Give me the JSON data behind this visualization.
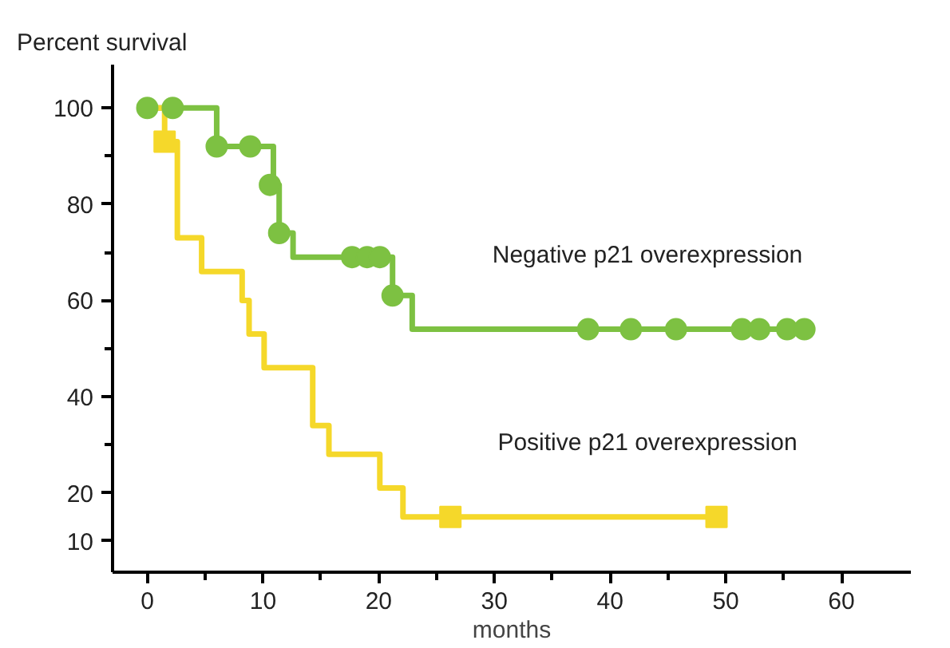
{
  "chart_data": {
    "type": "step",
    "ylabel": "Percent survival",
    "xlabel": "months",
    "xlim": [
      -3,
      66
    ],
    "ylim": [
      3.5,
      109
    ],
    "xticks": [
      0,
      10,
      20,
      30,
      40,
      50,
      60
    ],
    "yticks": [
      100,
      80,
      60,
      40,
      20,
      10
    ],
    "grid": false,
    "line_style": "solid",
    "series": [
      {
        "name": "Negative p21 overexpression",
        "color": "#7dc142",
        "x": [
          0,
          6,
          10.9,
          11.4,
          12.6,
          21.2,
          22.9,
          57
        ],
        "values": [
          100,
          92,
          84,
          74,
          69,
          61,
          54,
          54
        ]
      },
      {
        "name": "Positive p21 overexpression",
        "color": "#f5d82a",
        "x": [
          0,
          1.5,
          2.6,
          4.7,
          8.2,
          8.8,
          10.1,
          14.3,
          15.7,
          20.1,
          22.1,
          49.2
        ],
        "values": [
          100,
          93,
          73,
          66,
          60,
          53,
          46,
          34,
          28,
          21,
          15,
          15
        ]
      },
      {
        "type": "scatter",
        "marker": "circle",
        "color": "#7dc142",
        "x": [
          0,
          2.2,
          6,
          8.9,
          10.6,
          11.4,
          17.7,
          19,
          20.1,
          21.2,
          38.1,
          41.8,
          45.7,
          51.4,
          52.9,
          55.3,
          56.8
        ],
        "values": [
          100,
          100,
          92,
          92,
          84,
          74,
          69,
          69,
          69,
          61,
          54,
          54,
          54,
          54,
          54,
          54,
          54
        ]
      },
      {
        "type": "scatter",
        "marker": "square",
        "color": "#f5d82a",
        "x": [
          1.5,
          26.2,
          49.2
        ],
        "values": [
          93,
          15,
          15
        ]
      }
    ]
  }
}
